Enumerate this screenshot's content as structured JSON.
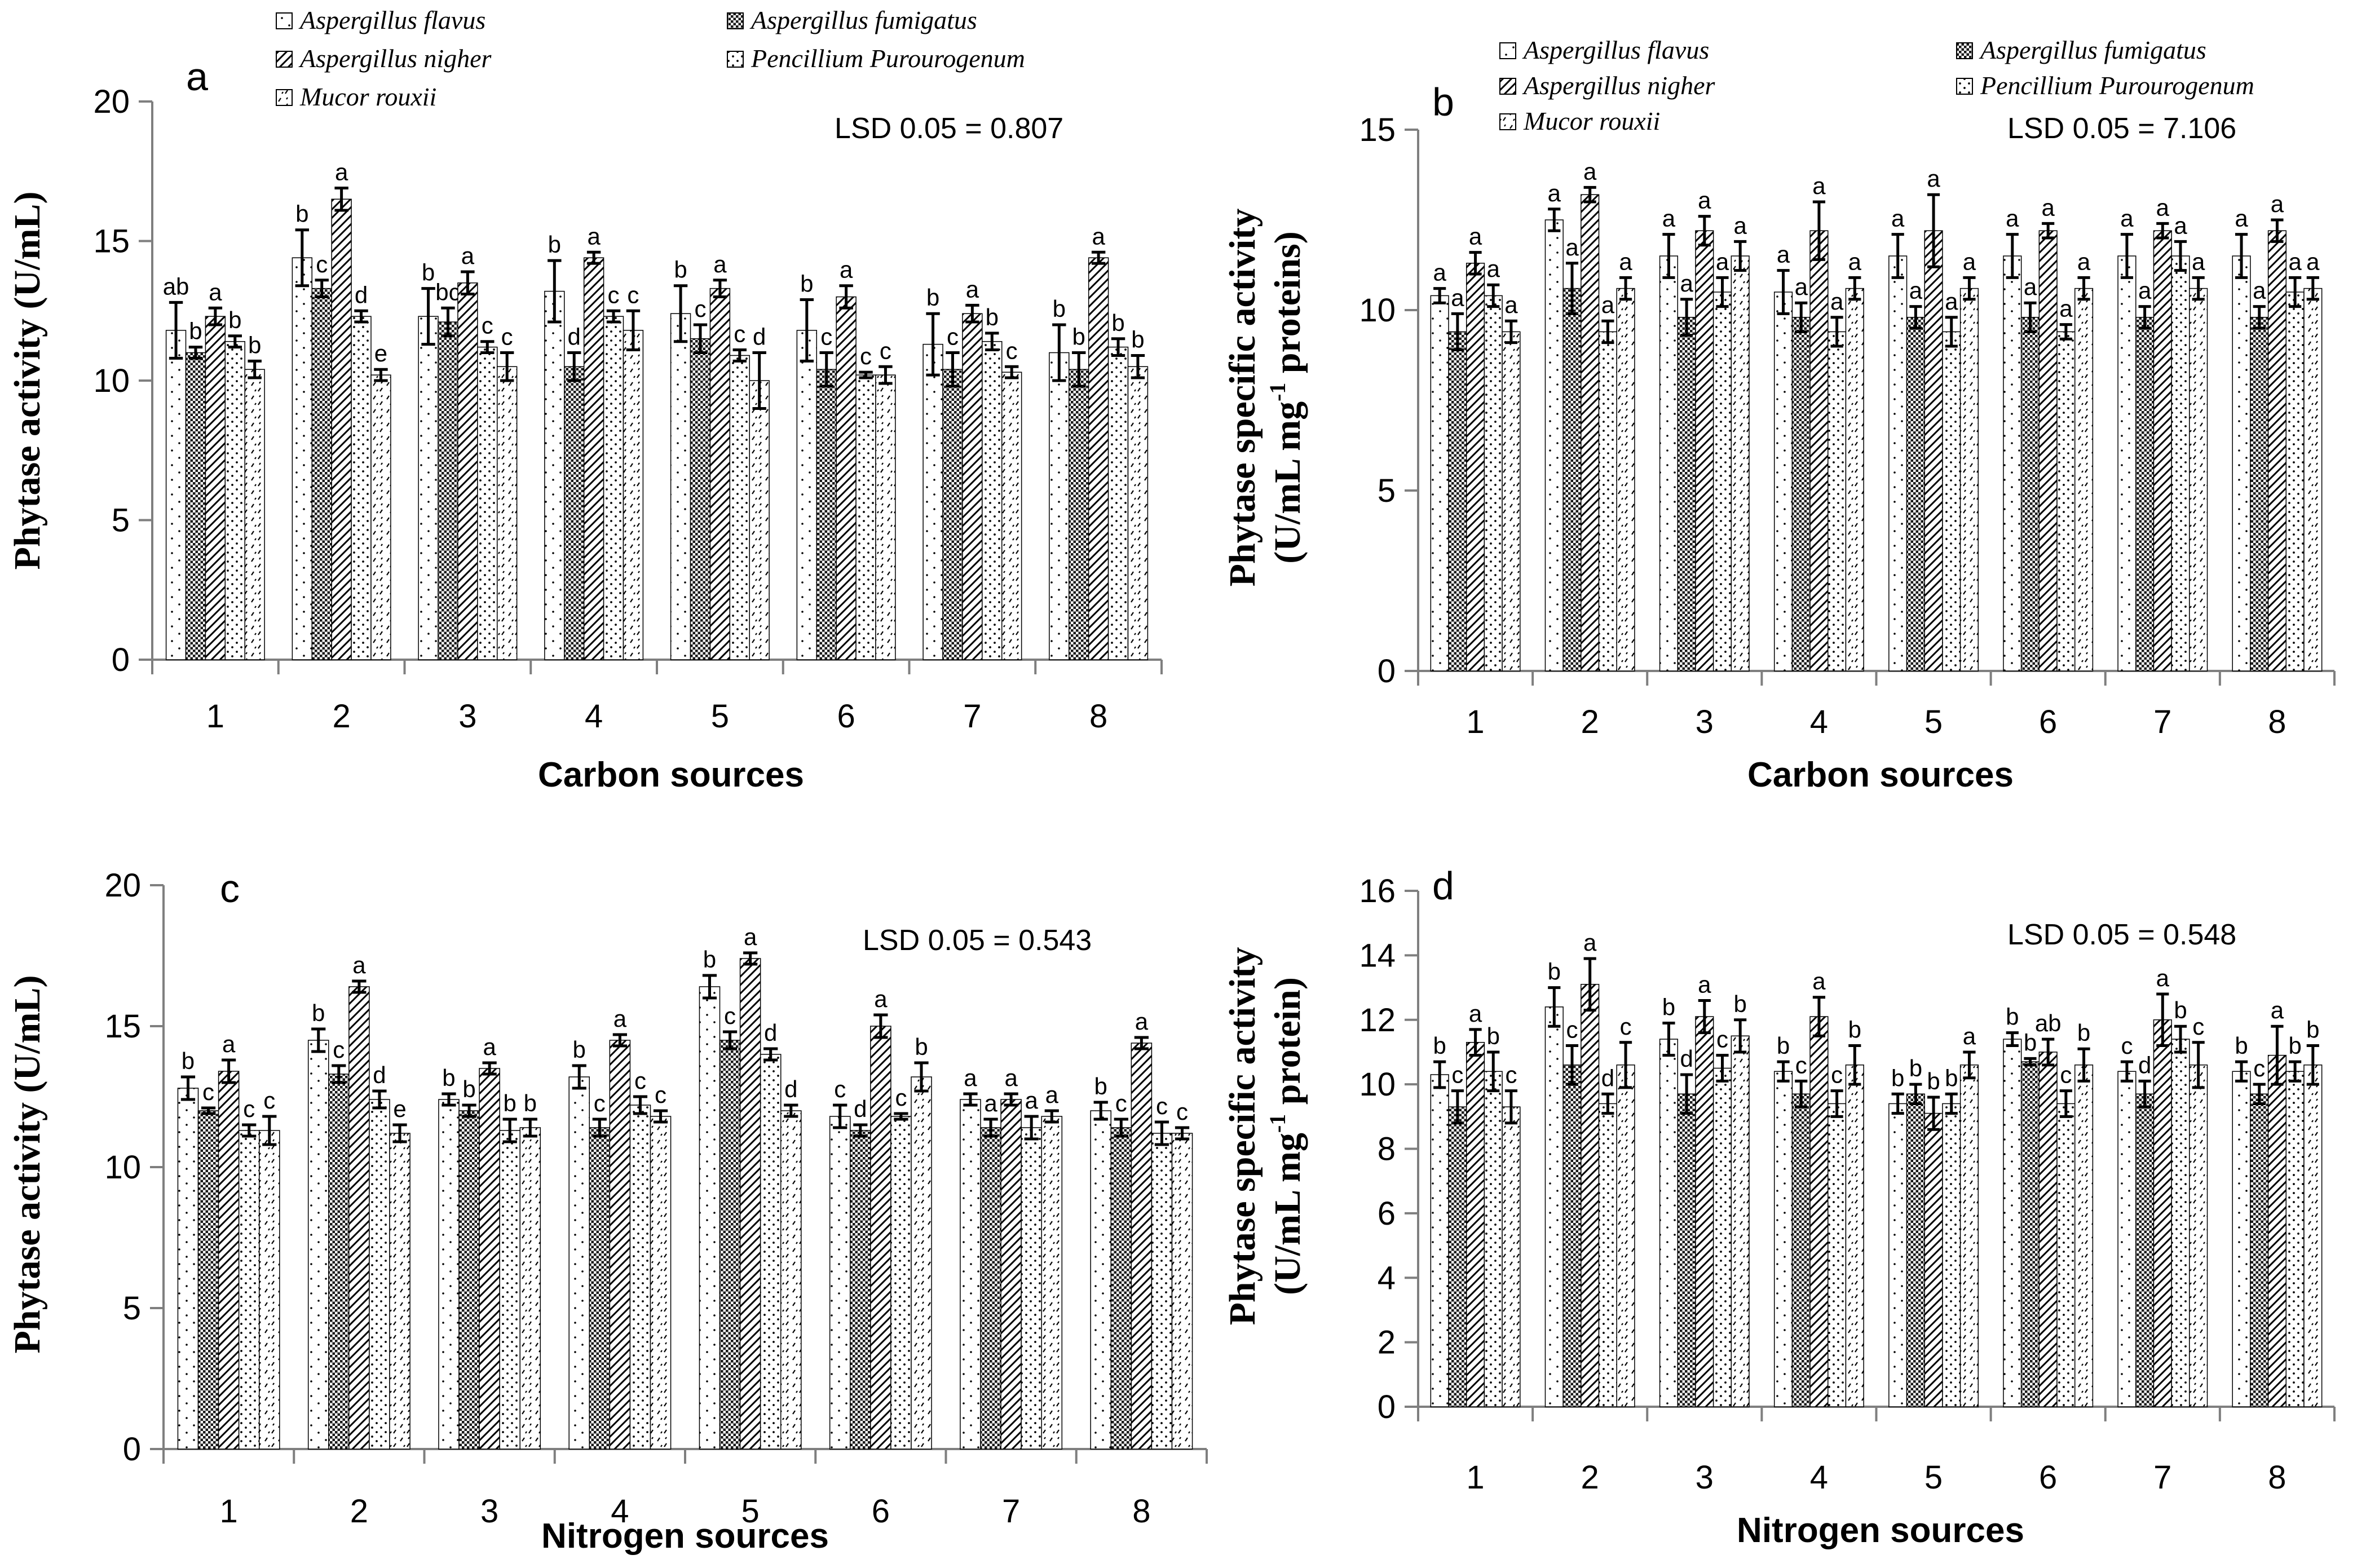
{
  "series_names": [
    "Aspergillus flavus",
    "Aspergillus fumigatus",
    "Aspergillus nigher",
    "Pencillium Purourogenum",
    "Mucor rouxii"
  ],
  "categories": [
    "1",
    "2",
    "3",
    "4",
    "5",
    "6",
    "7",
    "8"
  ],
  "chart_data": [
    {
      "type": "bar",
      "panel_label": "a",
      "xlabel": "Carbon sources",
      "ylabel": "Phytase activity (U/mL)",
      "annotation": "LSD 0.05 = 0.807",
      "ylim": [
        0,
        20
      ],
      "yticks": [
        "0",
        "5",
        "10",
        "15",
        "20"
      ],
      "categories": [
        "1",
        "2",
        "3",
        "4",
        "5",
        "6",
        "7",
        "8"
      ],
      "series": [
        {
          "name": "Aspergillus flavus",
          "values": [
            11.8,
            14.4,
            12.3,
            13.2,
            12.4,
            11.8,
            11.3,
            11.0
          ],
          "errors": [
            1.0,
            1.0,
            1.0,
            1.1,
            1.0,
            1.1,
            1.1,
            1.0
          ],
          "letters": [
            "ab",
            "b",
            "b",
            "b",
            "b",
            "b",
            "b",
            "b"
          ]
        },
        {
          "name": "Aspergillus fumigatus",
          "values": [
            11.0,
            13.3,
            12.1,
            10.5,
            11.5,
            10.4,
            10.4,
            10.4
          ],
          "errors": [
            0.2,
            0.3,
            0.5,
            0.5,
            0.5,
            0.6,
            0.6,
            0.6
          ],
          "letters": [
            "b",
            "c",
            "bc",
            "d",
            "c",
            "c",
            "c",
            "b"
          ]
        },
        {
          "name": "Aspergillus nigher",
          "values": [
            12.3,
            16.5,
            13.5,
            14.4,
            13.3,
            13.0,
            12.4,
            14.4
          ],
          "errors": [
            0.3,
            0.4,
            0.4,
            0.2,
            0.3,
            0.4,
            0.3,
            0.2
          ],
          "letters": [
            "a",
            "a",
            "a",
            "a",
            "a",
            "a",
            "a",
            "a"
          ]
        },
        {
          "name": "Pencillium Purourogenum",
          "values": [
            11.4,
            12.3,
            11.2,
            12.3,
            10.9,
            10.2,
            11.4,
            11.2
          ],
          "errors": [
            0.2,
            0.2,
            0.2,
            0.2,
            0.2,
            0.1,
            0.3,
            0.3
          ],
          "letters": [
            "b",
            "d",
            "c",
            "c",
            "c",
            "c",
            "b",
            "b"
          ]
        },
        {
          "name": "Mucor rouxii",
          "values": [
            10.4,
            10.2,
            10.5,
            11.8,
            10.0,
            10.2,
            10.3,
            10.5
          ],
          "errors": [
            0.3,
            0.2,
            0.5,
            0.7,
            1.0,
            0.3,
            0.2,
            0.4
          ],
          "letters": [
            "b",
            "e",
            "c",
            "c",
            "d",
            "c",
            "c",
            "b"
          ]
        }
      ]
    },
    {
      "type": "bar",
      "panel_label": "b",
      "xlabel": "Carbon sources",
      "ylabel_line1": "Phytase specific activity",
      "ylabel_line2": "(U/mL mg",
      "ylabel_sup": "-1",
      "ylabel_line2_tail": " proteins)",
      "annotation": "LSD 0.05 = 7.106",
      "ylim": [
        0,
        15
      ],
      "yticks": [
        "0",
        "5",
        "10",
        "15"
      ],
      "categories": [
        "1",
        "2",
        "3",
        "4",
        "5",
        "6",
        "7",
        "8"
      ],
      "series": [
        {
          "name": "Aspergillus flavus",
          "values": [
            10.4,
            12.5,
            11.5,
            10.5,
            11.5,
            11.5,
            11.5,
            11.5
          ],
          "errors": [
            0.2,
            0.3,
            0.6,
            0.6,
            0.6,
            0.6,
            0.6,
            0.6
          ],
          "letters": [
            "a",
            "a",
            "a",
            "a",
            "a",
            "a",
            "a",
            "a"
          ]
        },
        {
          "name": "Aspergillus fumigatus",
          "values": [
            9.4,
            10.6,
            9.8,
            9.8,
            9.8,
            9.8,
            9.8,
            9.8
          ],
          "errors": [
            0.5,
            0.7,
            0.5,
            0.4,
            0.3,
            0.4,
            0.3,
            0.3
          ],
          "letters": [
            "a",
            "a",
            "a",
            "a",
            "a",
            "a",
            "a",
            "a"
          ]
        },
        {
          "name": "Aspergillus nigher",
          "values": [
            11.3,
            13.2,
            12.2,
            12.2,
            12.2,
            12.2,
            12.2,
            12.2
          ],
          "errors": [
            0.3,
            0.2,
            0.4,
            0.8,
            1.0,
            0.2,
            0.2,
            0.3
          ],
          "letters": [
            "a",
            "a",
            "a",
            "a",
            "a",
            "a",
            "a",
            "a"
          ]
        },
        {
          "name": "Pencillium Purourogenum",
          "values": [
            10.4,
            9.4,
            10.5,
            9.4,
            9.4,
            9.4,
            11.5,
            10.5
          ],
          "errors": [
            0.3,
            0.3,
            0.4,
            0.4,
            0.4,
            0.2,
            0.4,
            0.4
          ],
          "letters": [
            "a",
            "a",
            "a",
            "a",
            "a",
            "a",
            "a",
            "a"
          ]
        },
        {
          "name": "Mucor rouxii",
          "values": [
            9.4,
            10.6,
            11.5,
            10.6,
            10.6,
            10.6,
            10.6,
            10.6
          ],
          "errors": [
            0.3,
            0.3,
            0.4,
            0.3,
            0.3,
            0.3,
            0.3,
            0.3
          ],
          "letters": [
            "a",
            "a",
            "a",
            "a",
            "a",
            "a",
            "a",
            "a"
          ]
        }
      ]
    },
    {
      "type": "bar",
      "panel_label": "c",
      "xlabel": "Nitrogen sources",
      "ylabel": "Phytase activity (U/mL)",
      "annotation": "LSD 0.05 = 0.543",
      "ylim": [
        0,
        20
      ],
      "yticks": [
        "0",
        "5",
        "10",
        "15",
        "20"
      ],
      "categories": [
        "1",
        "2",
        "3",
        "4",
        "5",
        "6",
        "7",
        "8"
      ],
      "series": [
        {
          "name": "Aspergillus flavus",
          "values": [
            12.8,
            14.5,
            12.4,
            13.2,
            16.4,
            11.8,
            12.4,
            12.0
          ],
          "errors": [
            0.4,
            0.4,
            0.2,
            0.4,
            0.4,
            0.4,
            0.2,
            0.3
          ],
          "letters": [
            "b",
            "b",
            "b",
            "b",
            "b",
            "c",
            "a",
            "b"
          ]
        },
        {
          "name": "Aspergillus fumigatus",
          "values": [
            12.0,
            13.3,
            12.0,
            11.4,
            14.5,
            11.3,
            11.4,
            11.4
          ],
          "errors": [
            0.1,
            0.3,
            0.2,
            0.3,
            0.3,
            0.2,
            0.3,
            0.3
          ],
          "letters": [
            "c",
            "c",
            "b",
            "c",
            "c",
            "d",
            "a",
            "c"
          ]
        },
        {
          "name": "Aspergillus nigher",
          "values": [
            13.4,
            16.4,
            13.5,
            14.5,
            17.4,
            15.0,
            12.4,
            14.4
          ],
          "errors": [
            0.4,
            0.2,
            0.2,
            0.2,
            0.2,
            0.4,
            0.2,
            0.2
          ],
          "letters": [
            "a",
            "a",
            "a",
            "a",
            "a",
            "a",
            "a",
            "a"
          ]
        },
        {
          "name": "Pencillium Purourogenum",
          "values": [
            11.3,
            12.4,
            11.3,
            12.2,
            14.0,
            11.8,
            11.4,
            11.2
          ],
          "errors": [
            0.2,
            0.3,
            0.4,
            0.3,
            0.2,
            0.1,
            0.4,
            0.4
          ],
          "letters": [
            "c",
            "d",
            "b",
            "c",
            "d",
            "c",
            "a",
            "c"
          ]
        },
        {
          "name": "Mucor rouxii",
          "values": [
            11.3,
            11.2,
            11.4,
            11.8,
            12.0,
            13.2,
            11.8,
            11.2
          ],
          "errors": [
            0.5,
            0.3,
            0.3,
            0.2,
            0.2,
            0.5,
            0.2,
            0.2
          ],
          "letters": [
            "c",
            "e",
            "b",
            "c",
            "d",
            "b",
            "a",
            "c"
          ]
        }
      ]
    },
    {
      "type": "bar",
      "panel_label": "d",
      "xlabel": "Nitrogen sources",
      "ylabel_line1": "Phytase specific activity",
      "ylabel_line2": "(U/mL mg",
      "ylabel_sup": "-1",
      "ylabel_line2_tail": " protein)",
      "annotation": "LSD 0.05 = 0.548",
      "ylim": [
        0,
        16
      ],
      "yticks": [
        "0",
        "2",
        "4",
        "6",
        "8",
        "10",
        "12",
        "14",
        "16"
      ],
      "categories": [
        "1",
        "2",
        "3",
        "4",
        "5",
        "6",
        "7",
        "8"
      ],
      "series": [
        {
          "name": "Aspergillus flavus",
          "values": [
            10.3,
            12.4,
            11.4,
            10.4,
            9.4,
            11.4,
            10.4,
            10.4
          ],
          "errors": [
            0.4,
            0.6,
            0.5,
            0.3,
            0.3,
            0.2,
            0.3,
            0.3
          ],
          "letters": [
            "b",
            "b",
            "b",
            "b",
            "b",
            "b",
            "c",
            "b"
          ]
        },
        {
          "name": "Aspergillus fumigatus",
          "values": [
            9.3,
            10.6,
            9.7,
            9.7,
            9.7,
            10.7,
            9.7,
            9.7
          ],
          "errors": [
            0.5,
            0.6,
            0.6,
            0.4,
            0.3,
            0.1,
            0.4,
            0.3
          ],
          "letters": [
            "c",
            "c",
            "d",
            "c",
            "b",
            "b",
            "d",
            "c"
          ]
        },
        {
          "name": "Aspergillus nigher",
          "values": [
            11.3,
            13.1,
            12.1,
            12.1,
            9.1,
            11.0,
            12.0,
            10.9
          ],
          "errors": [
            0.4,
            0.8,
            0.5,
            0.6,
            0.5,
            0.4,
            0.8,
            0.9
          ],
          "letters": [
            "a",
            "a",
            "a",
            "a",
            "b",
            "ab",
            "a",
            "a"
          ]
        },
        {
          "name": "Pencillium Purourogenum",
          "values": [
            10.4,
            9.4,
            10.5,
            9.4,
            9.4,
            9.4,
            11.4,
            10.4
          ],
          "errors": [
            0.6,
            0.3,
            0.4,
            0.4,
            0.3,
            0.4,
            0.4,
            0.3
          ],
          "letters": [
            "b",
            "d",
            "c",
            "c",
            "b",
            "c",
            "b",
            "b"
          ]
        },
        {
          "name": "Mucor rouxii",
          "values": [
            9.3,
            10.6,
            11.5,
            10.6,
            10.6,
            10.6,
            10.6,
            10.6
          ],
          "errors": [
            0.5,
            0.7,
            0.5,
            0.6,
            0.4,
            0.5,
            0.7,
            0.6
          ],
          "letters": [
            "c",
            "c",
            "b",
            "b",
            "a",
            "b",
            "c",
            "b"
          ]
        }
      ]
    }
  ]
}
